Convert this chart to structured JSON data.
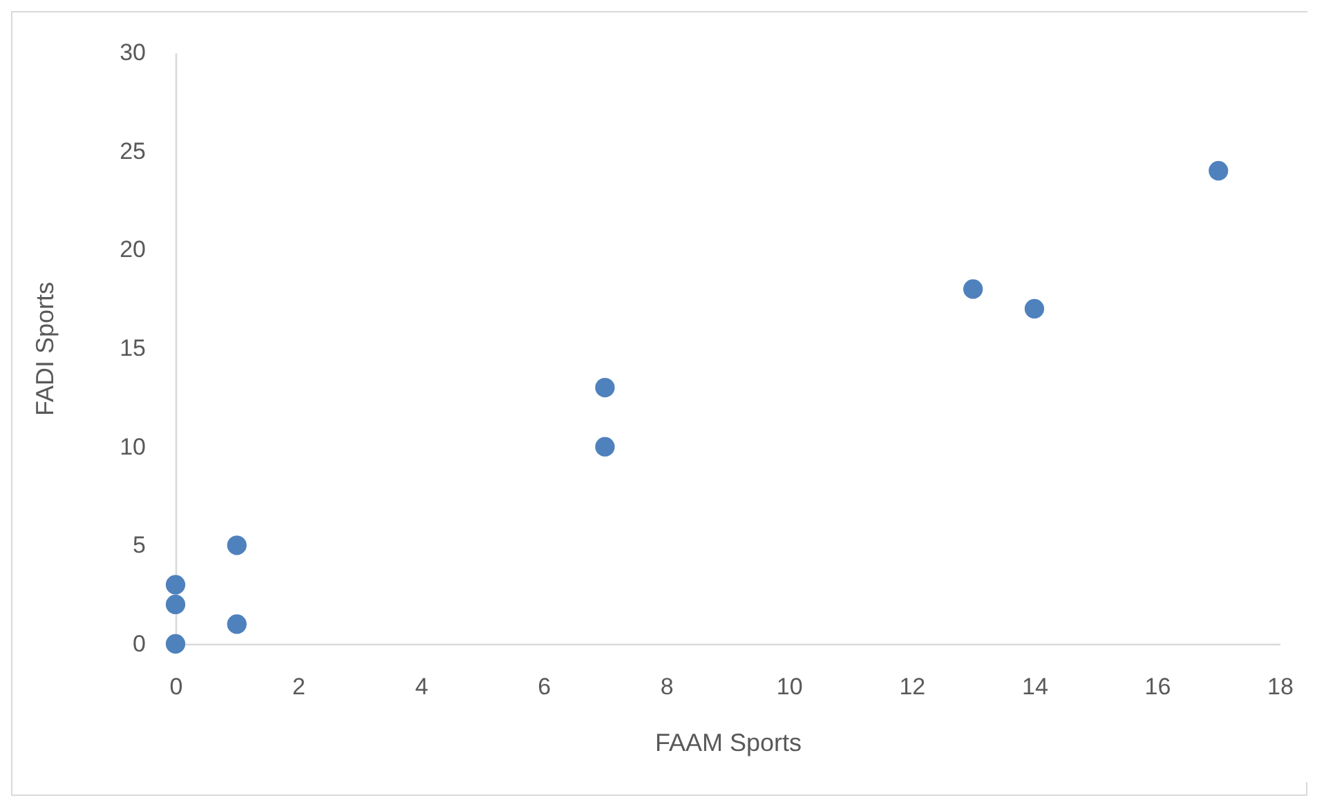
{
  "chart_data": {
    "type": "scatter",
    "xlabel": "FAAM Sports",
    "ylabel": "FADI Sports",
    "x": [
      0,
      0,
      0,
      1,
      1,
      7,
      7,
      13,
      14,
      17
    ],
    "series": [
      {
        "color": "#4f81bd",
        "values": [
          0,
          2,
          3,
          1,
          5,
          10,
          13,
          18,
          17,
          24
        ]
      }
    ],
    "xlim": [
      0,
      18
    ],
    "xticks": [
      0,
      2,
      4,
      6,
      8,
      10,
      12,
      14,
      16,
      18
    ],
    "ylim": [
      0,
      30
    ],
    "yticks": [
      0,
      5,
      10,
      15,
      20,
      25,
      30
    ],
    "marker": "circle",
    "grid": false
  }
}
